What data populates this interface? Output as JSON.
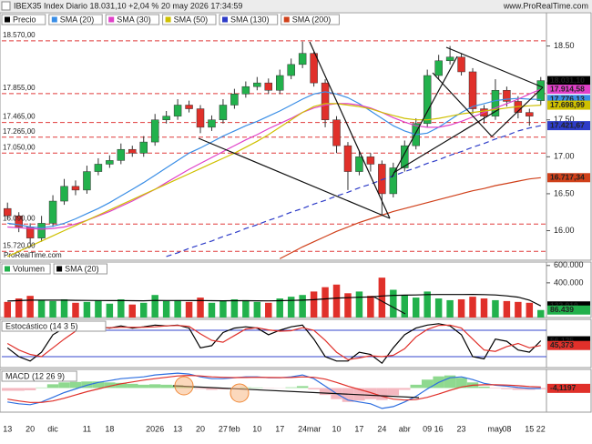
{
  "header": {
    "title": "IBEX35 Index Diario 18.031,10 +2,04 % 20 may 2026 17:34:59",
    "site": "www.ProRealTime.com",
    "watermark": "ProRealTime.com"
  },
  "chart_data": [
    {
      "type": "candlestick",
      "name": "Precio",
      "up_color": "#22b14c",
      "down_color": "#e0302a",
      "categories": [
        "13",
        null,
        "20",
        null,
        "dic",
        null,
        null,
        "11",
        null,
        "18",
        null,
        null,
        null,
        "2026",
        null,
        "13",
        null,
        "20",
        null,
        "27",
        "feb",
        null,
        "10",
        null,
        "17",
        null,
        "24",
        "mar",
        null,
        "10",
        null,
        "17",
        null,
        "24",
        null,
        "abr",
        null,
        "09",
        "16",
        null,
        "23",
        null,
        null,
        "may",
        "08",
        null,
        "15",
        "22"
      ],
      "open": [
        16300,
        16200,
        16050,
        15900,
        16100,
        16400,
        16600,
        16550,
        16800,
        16900,
        16950,
        17100,
        17050,
        17200,
        17500,
        17550,
        17700,
        17650,
        17400,
        17500,
        17700,
        17850,
        17950,
        18000,
        17900,
        18100,
        18250,
        18400,
        18000,
        17500,
        17150,
        16800,
        17000,
        16900,
        16500,
        16850,
        17150,
        17450,
        18100,
        18300,
        18350,
        18150,
        17650,
        17550,
        17900,
        17750,
        17600,
        17760
      ],
      "high": [
        16380,
        16250,
        16100,
        16200,
        16480,
        16700,
        16680,
        16880,
        16980,
        17020,
        17180,
        17150,
        17280,
        17580,
        17620,
        17780,
        17760,
        17700,
        17560,
        17780,
        17920,
        18020,
        18080,
        18060,
        18180,
        18330,
        18560,
        18420,
        18050,
        17550,
        17200,
        17080,
        17050,
        16950,
        16920,
        17220,
        17520,
        18180,
        18380,
        18500,
        18400,
        18200,
        17700,
        18050,
        17950,
        17820,
        17650,
        18080
      ],
      "low": [
        16150,
        15980,
        15820,
        15850,
        16050,
        16350,
        16480,
        16500,
        16750,
        16850,
        16900,
        17000,
        17000,
        17150,
        17450,
        17500,
        17600,
        17320,
        17350,
        17450,
        17650,
        17800,
        17900,
        17850,
        17850,
        18050,
        18200,
        17950,
        17400,
        17050,
        16550,
        16750,
        16800,
        16200,
        16450,
        16800,
        17100,
        17400,
        18050,
        18250,
        18100,
        17580,
        17450,
        17500,
        17680,
        17520,
        17420,
        17700
      ],
      "close": [
        16200,
        16050,
        15900,
        16100,
        16400,
        16600,
        16550,
        16800,
        16900,
        16950,
        17100,
        17050,
        17200,
        17500,
        17550,
        17700,
        17650,
        17400,
        17500,
        17700,
        17850,
        17950,
        18000,
        17900,
        18100,
        18250,
        18400,
        18000,
        17500,
        17150,
        16800,
        17000,
        16900,
        16500,
        16850,
        17150,
        17450,
        18100,
        18300,
        18350,
        18150,
        17650,
        17550,
        17900,
        17750,
        17600,
        17550,
        18031.1
      ],
      "series": [
        {
          "name": "SMA (20)",
          "color": "#3a8ee6",
          "values": [
            16100,
            16080,
            16050,
            16040,
            16060,
            16100,
            16160,
            16230,
            16300,
            16380,
            16470,
            16560,
            16650,
            16750,
            16850,
            16950,
            17050,
            17120,
            17200,
            17280,
            17350,
            17420,
            17480,
            17550,
            17620,
            17700,
            17780,
            17850,
            17880,
            17850,
            17800,
            17720,
            17620,
            17520,
            17420,
            17350,
            17300,
            17320,
            17400,
            17500,
            17600,
            17680,
            17720,
            17760,
            17780,
            17790,
            17780,
            17776.13
          ]
        },
        {
          "name": "SMA (30)",
          "color": "#e040c8",
          "values": [
            16050,
            16040,
            16030,
            16020,
            16030,
            16050,
            16090,
            16140,
            16200,
            16260,
            16330,
            16400,
            16480,
            16560,
            16650,
            16740,
            16830,
            16910,
            16990,
            17070,
            17150,
            17230,
            17300,
            17380,
            17450,
            17520,
            17600,
            17660,
            17700,
            17720,
            17720,
            17700,
            17660,
            17600,
            17530,
            17470,
            17420,
            17400,
            17400,
            17430,
            17480,
            17540,
            17600,
            17660,
            17720,
            17780,
            17850,
            17914.58
          ]
        },
        {
          "name": "SMA (50)",
          "color": "#cfc000",
          "values": [
            15650,
            15720,
            15790,
            15860,
            15930,
            16000,
            16070,
            16140,
            16210,
            16280,
            16350,
            16420,
            16490,
            16560,
            16630,
            16700,
            16770,
            16840,
            16910,
            16980,
            17050,
            17130,
            17210,
            17300,
            17400,
            17500,
            17600,
            17680,
            17720,
            17720,
            17700,
            17680,
            17650,
            17600,
            17560,
            17520,
            17500,
            17500,
            17520,
            17550,
            17580,
            17600,
            17620,
            17640,
            17660,
            17680,
            17690,
            17698.99
          ]
        },
        {
          "name": "SMA (130)",
          "color": "#2e3cc8",
          "dashed": true,
          "values": [
            null,
            null,
            null,
            null,
            null,
            null,
            null,
            null,
            null,
            null,
            null,
            null,
            null,
            null,
            15650,
            15700,
            15760,
            15810,
            15860,
            15920,
            15970,
            16030,
            16080,
            16140,
            16190,
            16250,
            16300,
            16360,
            16410,
            16470,
            16520,
            16580,
            16630,
            16690,
            16740,
            16800,
            16850,
            16910,
            16960,
            17020,
            17070,
            17130,
            17180,
            17240,
            17290,
            17350,
            17390,
            17421.67
          ]
        },
        {
          "name": "SMA (200)",
          "color": "#d0401a",
          "values": [
            null,
            null,
            null,
            null,
            null,
            null,
            null,
            null,
            null,
            null,
            null,
            null,
            null,
            null,
            null,
            null,
            null,
            null,
            null,
            null,
            null,
            null,
            null,
            null,
            15620,
            15700,
            15780,
            15850,
            15920,
            15990,
            16050,
            16110,
            16160,
            16210,
            16260,
            16300,
            16340,
            16380,
            16420,
            16460,
            16500,
            16540,
            16570,
            16610,
            16640,
            16670,
            16700,
            16717.34
          ]
        }
      ],
      "ylim": [
        15600,
        18950
      ],
      "yticks": [
        {
          "value": 16000,
          "label": "16.00"
        },
        {
          "value": 16500,
          "label": "16.50"
        },
        {
          "value": 17000,
          "label": "17.00"
        },
        {
          "value": 17500,
          "label": "17.50"
        },
        {
          "value": 18000,
          "label": "18.00"
        },
        {
          "value": 18500,
          "label": "18.50"
        }
      ],
      "level_color": "#e03a3a",
      "levels": [
        {
          "value": 18570,
          "label": "18.570,00"
        },
        {
          "value": 17855,
          "label": "17.855,00"
        },
        {
          "value": 17465,
          "label": "17.465,00"
        },
        {
          "value": 17265,
          "label": "17.265,00"
        },
        {
          "value": 17050,
          "label": "17.050,00"
        },
        {
          "value": 16090,
          "label": "16.090,00"
        },
        {
          "value": 15720,
          "label": "15.720,00"
        }
      ],
      "tags": [
        {
          "value": 18031.1,
          "label": "18.031,10",
          "color": "#000000"
        },
        {
          "value": 17914.58,
          "label": "17.914,58",
          "color": "#e040c8"
        },
        {
          "value": 17776.13,
          "label": "17.776,13",
          "color": "#3a8ee6"
        },
        {
          "value": 17698.99,
          "label": "17.698,99",
          "color": "#cfc000"
        },
        {
          "value": 17421.67,
          "label": "17.421,67",
          "color": "#2e3cc8"
        },
        {
          "value": 16717.34,
          "label": "16.717,34",
          "color": "#d0401a"
        }
      ]
    },
    {
      "type": "bar",
      "up_color": "#22b14c",
      "down_color": "#e0302a",
      "series": [
        {
          "name": "Volumen",
          "style": "bar",
          "color": "#22b14c",
          "values": [
            180000,
            220000,
            250000,
            200000,
            190000,
            210000,
            170000,
            180000,
            200000,
            160000,
            210000,
            150000,
            170000,
            260000,
            190000,
            200000,
            180000,
            230000,
            170000,
            190000,
            210000,
            200000,
            180000,
            170000,
            220000,
            240000,
            260000,
            300000,
            350000,
            380000,
            280000,
            300000,
            250000,
            460000,
            320000,
            260000,
            230000,
            300000,
            220000,
            200000,
            210000,
            240000,
            220000,
            200000,
            190000,
            180000,
            170000,
            86439
          ]
        },
        {
          "name": "SMA (20)",
          "style": "line",
          "color": "#000000",
          "values": [
            190000,
            195000,
            200000,
            200000,
            200000,
            200000,
            198000,
            197000,
            196000,
            195000,
            196000,
            194000,
            193000,
            197000,
            196000,
            196000,
            195000,
            196000,
            194000,
            193000,
            194000,
            194000,
            193000,
            192000,
            194000,
            197000,
            200000,
            206000,
            215000,
            225000,
            229000,
            234000,
            237000,
            249000,
            255000,
            258000,
            260000,
            264000,
            265000,
            265000,
            265000,
            266000,
            264000,
            260000,
            250000,
            235000,
            200000,
            133919
          ]
        }
      ],
      "ylim": [
        0,
        640000
      ],
      "yticks": [
        {
          "value": 400000,
          "label": "400.000"
        },
        {
          "value": 600000,
          "label": "600.000"
        }
      ],
      "tags": [
        {
          "value": 133919,
          "label": "133.919",
          "color": "#000000"
        },
        {
          "value": 86439,
          "label": "86.439",
          "color": "#22b14c"
        }
      ]
    },
    {
      "type": "line",
      "title": "Estocástico (14 3 5)",
      "series": [
        {
          "color": "#000000",
          "values": [
            40,
            20,
            10,
            30,
            70,
            85,
            80,
            85,
            88,
            85,
            90,
            85,
            88,
            92,
            90,
            92,
            85,
            40,
            45,
            75,
            85,
            88,
            85,
            70,
            80,
            88,
            92,
            60,
            20,
            10,
            10,
            30,
            25,
            5,
            40,
            70,
            85,
            92,
            95,
            90,
            70,
            20,
            15,
            60,
            55,
            35,
            30,
            56.125
          ]
        },
        {
          "color": "#e0302a",
          "values": [
            50,
            35,
            25,
            20,
            40,
            60,
            78,
            83,
            85,
            86,
            87,
            87,
            87,
            88,
            90,
            91,
            89,
            72,
            57,
            53,
            68,
            83,
            86,
            81,
            78,
            79,
            86,
            80,
            57,
            30,
            13,
            17,
            22,
            20,
            23,
            38,
            65,
            82,
            91,
            92,
            85,
            60,
            35,
            32,
            43,
            50,
            40,
            45.373
          ]
        }
      ],
      "ylim": [
        -5,
        105
      ],
      "levels": [
        20,
        80
      ],
      "level_color": "#3344cc",
      "tags": [
        {
          "value": 56.125,
          "label": "56,125",
          "color": "#000000"
        },
        {
          "value": 45.373,
          "label": "45,373",
          "color": "#e0302a"
        }
      ]
    },
    {
      "type": "line",
      "title": "MACD (12 26 9)",
      "pos_color": "#8fd98f",
      "neg_color": "#f4b8c0",
      "histogram": [
        -30,
        -30,
        -25,
        5,
        40,
        60,
        65,
        70,
        70,
        60,
        55,
        45,
        35,
        40,
        35,
        30,
        15,
        -10,
        -20,
        -15,
        -2,
        7,
        5,
        -3,
        -2,
        7,
        20,
        -15,
        -75,
        -120,
        -150,
        -135,
        -120,
        -130,
        -80,
        -20,
        35,
        90,
        125,
        135,
        110,
        60,
        15,
        -5,
        -12,
        -20,
        -20,
        -14.1197
      ],
      "series": [
        {
          "color": "#2e6fe0",
          "values": [
            -150,
            -170,
            -180,
            -150,
            -100,
            -50,
            -10,
            30,
            60,
            80,
            100,
            110,
            120,
            140,
            150,
            160,
            150,
            120,
            100,
            100,
            110,
            120,
            120,
            110,
            110,
            120,
            140,
            100,
            20,
            -60,
            -130,
            -150,
            -170,
            -220,
            -200,
            -150,
            -90,
            -10,
            60,
            110,
            120,
            90,
            50,
            30,
            20,
            5,
            -5,
            -4.1197
          ]
        },
        {
          "color": "#e0302a",
          "values": [
            -120,
            -140,
            -155,
            -155,
            -140,
            -110,
            -75,
            -40,
            -10,
            20,
            45,
            65,
            85,
            100,
            115,
            130,
            135,
            130,
            120,
            115,
            112,
            113,
            115,
            113,
            112,
            113,
            120,
            115,
            95,
            60,
            20,
            -15,
            -50,
            -90,
            -120,
            -130,
            -125,
            -100,
            -65,
            -25,
            10,
            30,
            35,
            35,
            32,
            25,
            15,
            10
          ]
        }
      ],
      "ylim": [
        -260,
        200
      ],
      "tags": [
        {
          "value": -4.1197,
          "label": "-4,1197",
          "color": "#e0302a"
        }
      ]
    }
  ]
}
